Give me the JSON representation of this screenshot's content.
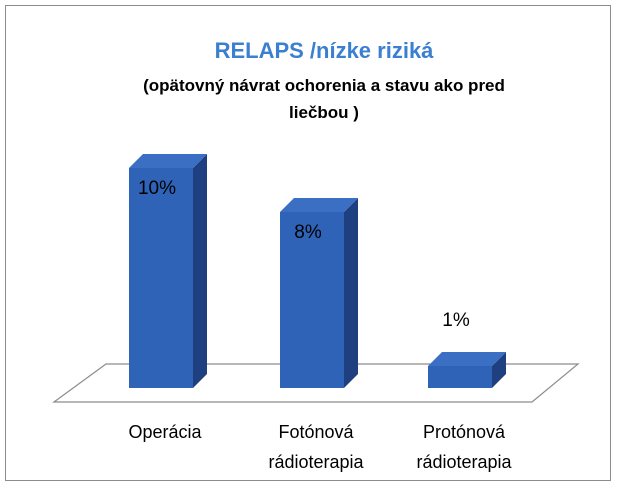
{
  "chart_data": {
    "type": "bar",
    "title": "RELAPS /nízke riziká",
    "subtitle_line1": "(opätovný návrat ochorenia a stavu ako pred",
    "subtitle_line2": "liečbou )",
    "categories": [
      [
        "Operácia"
      ],
      [
        "Fotónová",
        "rádioterapia"
      ],
      [
        "Protónová",
        "rádioterapia"
      ]
    ],
    "values": [
      10,
      8,
      1
    ],
    "data_labels": [
      "10%",
      "8%",
      "1%"
    ],
    "ylim": [
      0,
      10
    ],
    "grid": false,
    "legend": "none",
    "three_d": true
  },
  "colors": {
    "title": "#3b7fd0",
    "bar_front": "#2e63b8",
    "bar_side": "#1e3f80",
    "bar_top": "#3a6fc4",
    "floor_stroke": "#8c8c8c"
  }
}
